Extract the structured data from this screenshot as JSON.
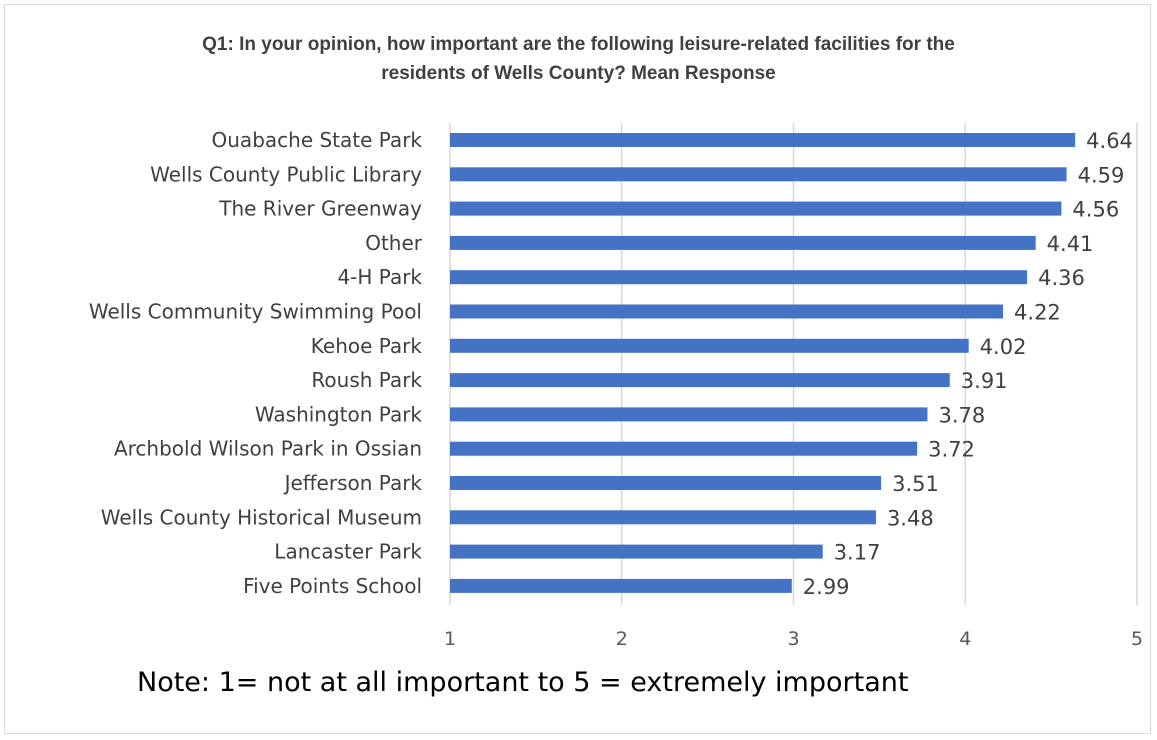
{
  "chart_data": {
    "type": "bar",
    "orientation": "horizontal",
    "title": [
      "Q1: In your opinion, how important are the following leisure-related facilities for the",
      "residents of Wells County? Mean Response"
    ],
    "categories": [
      "Ouabache State Park",
      "Wells County Public Library",
      "The River Greenway",
      "Other",
      "4-H Park",
      "Wells Community Swimming Pool",
      "Kehoe Park",
      "Roush Park",
      "Washington Park",
      "Archbold Wilson Park in Ossian",
      "Jefferson Park",
      "Wells County Historical Museum",
      "Lancaster Park",
      "Five Points School"
    ],
    "values": [
      4.64,
      4.59,
      4.56,
      4.41,
      4.36,
      4.22,
      4.02,
      3.91,
      3.78,
      3.72,
      3.51,
      3.48,
      3.17,
      2.99
    ],
    "data_labels": [
      "4.64",
      "4.59",
      "4.56",
      "4.41",
      "4.36",
      "4.22",
      "4.02",
      "3.91",
      "3.78",
      "3.72",
      "3.51",
      "3.48",
      "3.17",
      "2.99"
    ],
    "xticks": [
      "1",
      "2",
      "3",
      "4",
      "5"
    ],
    "xlim": [
      1,
      5
    ],
    "grid": true,
    "legend": "none",
    "bar_color": "#4472c4",
    "grid_color": "#d9d9d9",
    "text_color": "#404040"
  },
  "note": "Note: 1= not at all important to 5 = extremely important"
}
